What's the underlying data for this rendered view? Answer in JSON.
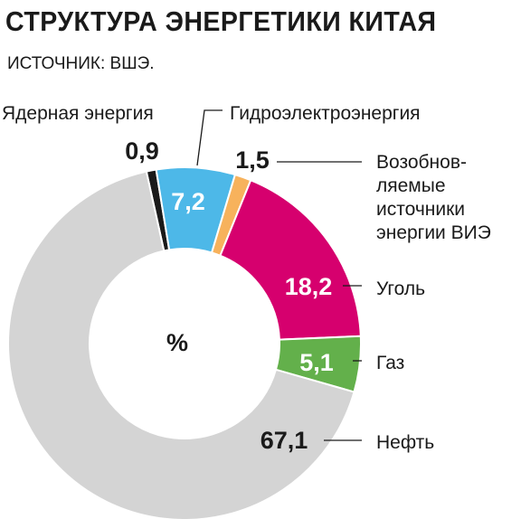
{
  "header": {
    "title": "СТРУКТУРА ЭНЕРГЕТИКИ КИТАЯ",
    "source": "ИСТОЧНИК: ВШЭ."
  },
  "chart_data": {
    "type": "pie",
    "subtype": "donut",
    "title": "СТРУКТУРА ЭНЕРГЕТИКИ КИТАЯ",
    "unit": "%",
    "categories": [
      "Ядерная энергия",
      "Гидроэлектроэнергия",
      "Возобнов-ляемые источники энергии ВИЭ",
      "Уголь",
      "Газ",
      "Нефть"
    ],
    "values": [
      0.9,
      7.2,
      1.5,
      18.2,
      5.1,
      67.1
    ],
    "value_labels": [
      "0,9",
      "7,2",
      "1,5",
      "18,2",
      "5,1",
      "67,1"
    ],
    "label_lines": [
      [
        "Ядерная энергия"
      ],
      [
        "Гидроэлектроэнергия"
      ],
      [
        "Возобнов-",
        "ляемые",
        "источники",
        "энергии ВИЭ"
      ],
      [
        "Уголь"
      ],
      [
        "Газ"
      ],
      [
        "Нефть"
      ]
    ],
    "colors": [
      "#1a1a1a",
      "#4db8e8",
      "#f7b25c",
      "#d6006e",
      "#63b04b",
      "#d4d4d4"
    ],
    "value_colors": [
      "#1a1a1a",
      "#ffffff",
      "#1a1a1a",
      "#ffffff",
      "#ffffff",
      "#1a1a1a"
    ]
  }
}
